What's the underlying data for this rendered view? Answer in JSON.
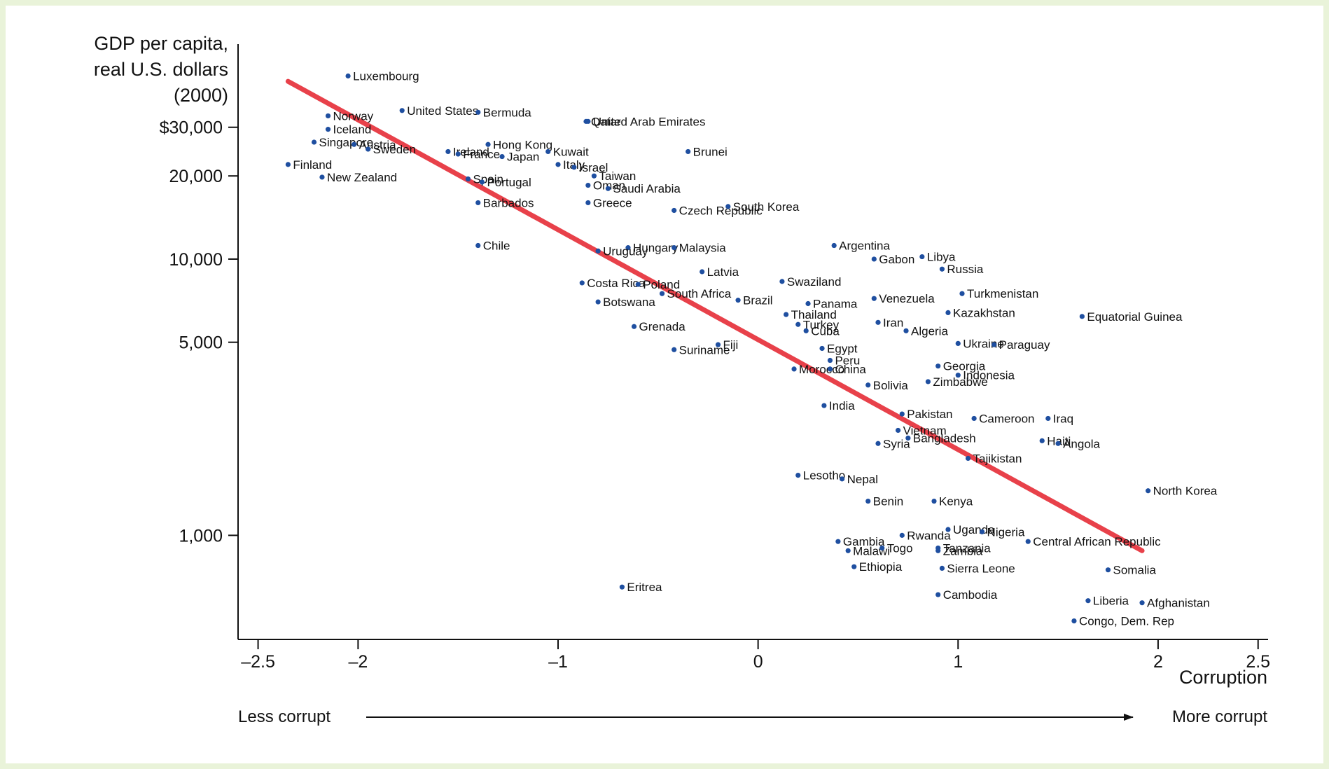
{
  "chart_data": {
    "type": "scatter",
    "ylabel_lines": [
      "GDP per capita,",
      "real U.S. dollars",
      "(2000)"
    ],
    "xlabel": "Corruption",
    "x_ticks": [
      {
        "value": -2.5,
        "label": "–2.5"
      },
      {
        "value": -2,
        "label": "–2"
      },
      {
        "value": -1,
        "label": "–1"
      },
      {
        "value": 0,
        "label": "0"
      },
      {
        "value": 1,
        "label": "1"
      },
      {
        "value": 2,
        "label": "2"
      },
      {
        "value": 2.5,
        "label": "2.5"
      }
    ],
    "y_ticks": [
      {
        "value": 30000,
        "label": "$30,000"
      },
      {
        "value": 20000,
        "label": "20,000"
      },
      {
        "value": 10000,
        "label": "10,000"
      },
      {
        "value": 5000,
        "label": "5,000"
      },
      {
        "value": 1000,
        "label": "1,000"
      }
    ],
    "xlim": [
      -2.6,
      2.55
    ],
    "ylim": [
      420,
      60000
    ],
    "y_scale": "log",
    "less_corrupt": "Less corrupt",
    "more_corrupt": "More corrupt",
    "trend": {
      "x": [
        -2.35,
        1.92
      ],
      "y": [
        44000,
        880
      ],
      "color": "#e8414a"
    },
    "point_color": "#1f4fa0",
    "points": [
      {
        "name": "Luxembourg",
        "x": -2.05,
        "y": 46000
      },
      {
        "name": "Norway",
        "x": -2.15,
        "y": 33000
      },
      {
        "name": "United States",
        "x": -1.78,
        "y": 34500
      },
      {
        "name": "Bermuda",
        "x": -1.4,
        "y": 34000
      },
      {
        "name": "Iceland",
        "x": -2.15,
        "y": 29500
      },
      {
        "name": "Singapore",
        "x": -2.22,
        "y": 26500
      },
      {
        "name": "Austria",
        "x": -2.02,
        "y": 26000
      },
      {
        "name": "Finland",
        "x": -2.35,
        "y": 22000
      },
      {
        "name": "Sweden",
        "x": -1.95,
        "y": 25000
      },
      {
        "name": "New Zealand",
        "x": -2.18,
        "y": 19800
      },
      {
        "name": "Ireland",
        "x": -1.55,
        "y": 24500
      },
      {
        "name": "France",
        "x": -1.5,
        "y": 24000
      },
      {
        "name": "Hong Kong",
        "x": -1.35,
        "y": 26000
      },
      {
        "name": "Japan",
        "x": -1.28,
        "y": 23500
      },
      {
        "name": "Qatar",
        "x": -0.86,
        "y": 31500
      },
      {
        "name": "United Arab Emirates",
        "x": -0.85,
        "y": 31500
      },
      {
        "name": "Kuwait",
        "x": -1.05,
        "y": 24500
      },
      {
        "name": "Brunei",
        "x": -0.35,
        "y": 24500
      },
      {
        "name": "Italy",
        "x": -1.0,
        "y": 22000
      },
      {
        "name": "Israel",
        "x": -0.92,
        "y": 21500
      },
      {
        "name": "Taiwan",
        "x": -0.82,
        "y": 20000
      },
      {
        "name": "Spain",
        "x": -1.45,
        "y": 19500
      },
      {
        "name": "Portugal",
        "x": -1.38,
        "y": 19000
      },
      {
        "name": "Oman",
        "x": -0.85,
        "y": 18500
      },
      {
        "name": "Saudi Arabia",
        "x": -0.75,
        "y": 18000
      },
      {
        "name": "Barbados",
        "x": -1.4,
        "y": 16000
      },
      {
        "name": "Greece",
        "x": -0.85,
        "y": 16000
      },
      {
        "name": "Czech Republic",
        "x": -0.42,
        "y": 15000
      },
      {
        "name": "South Korea",
        "x": -0.15,
        "y": 15500
      },
      {
        "name": "Chile",
        "x": -1.4,
        "y": 11200
      },
      {
        "name": "Hungary",
        "x": -0.65,
        "y": 11000
      },
      {
        "name": "Malaysia",
        "x": -0.42,
        "y": 11000
      },
      {
        "name": "Uruguay",
        "x": -0.8,
        "y": 10700
      },
      {
        "name": "Argentina",
        "x": 0.38,
        "y": 11200
      },
      {
        "name": "Gabon",
        "x": 0.58,
        "y": 10000
      },
      {
        "name": "Libya",
        "x": 0.82,
        "y": 10200
      },
      {
        "name": "Costa Rica",
        "x": -0.88,
        "y": 8200
      },
      {
        "name": "Poland",
        "x": -0.6,
        "y": 8100
      },
      {
        "name": "Latvia",
        "x": -0.28,
        "y": 9000
      },
      {
        "name": "Swaziland",
        "x": 0.12,
        "y": 8300
      },
      {
        "name": "Russia",
        "x": 0.92,
        "y": 9200
      },
      {
        "name": "Botswana",
        "x": -0.8,
        "y": 7000
      },
      {
        "name": "South Africa",
        "x": -0.48,
        "y": 7500
      },
      {
        "name": "Panama",
        "x": 0.25,
        "y": 6900
      },
      {
        "name": "Venezuela",
        "x": 0.58,
        "y": 7200
      },
      {
        "name": "Turkmenistan",
        "x": 1.02,
        "y": 7500
      },
      {
        "name": "Brazil",
        "x": -0.1,
        "y": 7100
      },
      {
        "name": "Thailand",
        "x": 0.14,
        "y": 6300
      },
      {
        "name": "Kazakhstan",
        "x": 0.95,
        "y": 6400
      },
      {
        "name": "Equatorial Guinea",
        "x": 1.62,
        "y": 6200
      },
      {
        "name": "Turkey",
        "x": 0.2,
        "y": 5800
      },
      {
        "name": "Iran",
        "x": 0.6,
        "y": 5900
      },
      {
        "name": "Algeria",
        "x": 0.74,
        "y": 5500
      },
      {
        "name": "Grenada",
        "x": -0.62,
        "y": 5700
      },
      {
        "name": "Cuba",
        "x": 0.24,
        "y": 5500
      },
      {
        "name": "Fiji",
        "x": -0.2,
        "y": 4900
      },
      {
        "name": "Egypt",
        "x": 0.32,
        "y": 4750
      },
      {
        "name": "Ukraine",
        "x": 1.0,
        "y": 4950
      },
      {
        "name": "Paraguay",
        "x": 1.18,
        "y": 4900
      },
      {
        "name": "Suriname",
        "x": -0.42,
        "y": 4700
      },
      {
        "name": "Peru",
        "x": 0.36,
        "y": 4300
      },
      {
        "name": "Morocco",
        "x": 0.18,
        "y": 4000
      },
      {
        "name": "China",
        "x": 0.36,
        "y": 4000
      },
      {
        "name": "Georgia",
        "x": 0.9,
        "y": 4100
      },
      {
        "name": "Indonesia",
        "x": 1.0,
        "y": 3800
      },
      {
        "name": "Zimbabwe",
        "x": 0.85,
        "y": 3600
      },
      {
        "name": "Bolivia",
        "x": 0.55,
        "y": 3500
      },
      {
        "name": "India",
        "x": 0.33,
        "y": 2950
      },
      {
        "name": "Pakistan",
        "x": 0.72,
        "y": 2750
      },
      {
        "name": "Cameroon",
        "x": 1.08,
        "y": 2650
      },
      {
        "name": "Iraq",
        "x": 1.45,
        "y": 2650
      },
      {
        "name": "Vietnam",
        "x": 0.7,
        "y": 2400
      },
      {
        "name": "Haiti",
        "x": 1.42,
        "y": 2200
      },
      {
        "name": "Angola",
        "x": 1.5,
        "y": 2150
      },
      {
        "name": "Lesotho",
        "x": 0.2,
        "y": 1650
      },
      {
        "name": "Syria",
        "x": 0.6,
        "y": 2150
      },
      {
        "name": "Bangladesh",
        "x": 0.75,
        "y": 2250
      },
      {
        "name": "Tajikistan",
        "x": 1.05,
        "y": 1900
      },
      {
        "name": "Nepal",
        "x": 0.42,
        "y": 1600
      },
      {
        "name": "North Korea",
        "x": 1.95,
        "y": 1450
      },
      {
        "name": "Benin",
        "x": 0.55,
        "y": 1330
      },
      {
        "name": "Kenya",
        "x": 0.88,
        "y": 1330
      },
      {
        "name": "Gambia",
        "x": 0.4,
        "y": 950
      },
      {
        "name": "Rwanda",
        "x": 0.72,
        "y": 1000
      },
      {
        "name": "Uganda",
        "x": 0.95,
        "y": 1050
      },
      {
        "name": "Nigeria",
        "x": 1.12,
        "y": 1030
      },
      {
        "name": "Central African Republic",
        "x": 1.35,
        "y": 950
      },
      {
        "name": "Malawi",
        "x": 0.45,
        "y": 880
      },
      {
        "name": "Togo",
        "x": 0.62,
        "y": 900
      },
      {
        "name": "Zambia",
        "x": 0.9,
        "y": 880
      },
      {
        "name": "Tanzania",
        "x": 0.9,
        "y": 900
      },
      {
        "name": "Ethiopia",
        "x": 0.48,
        "y": 770
      },
      {
        "name": "Sierra Leone",
        "x": 0.92,
        "y": 760
      },
      {
        "name": "Somalia",
        "x": 1.75,
        "y": 750
      },
      {
        "name": "Eritrea",
        "x": -0.68,
        "y": 650
      },
      {
        "name": "Cambodia",
        "x": 0.9,
        "y": 610
      },
      {
        "name": "Liberia",
        "x": 1.65,
        "y": 580
      },
      {
        "name": "Afghanistan",
        "x": 1.92,
        "y": 570
      },
      {
        "name": "Congo, Dem. Rep",
        "x": 1.58,
        "y": 490
      }
    ]
  }
}
